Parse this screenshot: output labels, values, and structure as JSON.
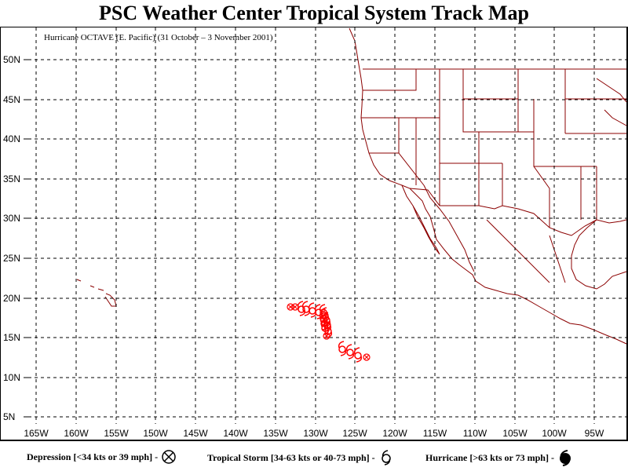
{
  "header": {
    "title": "PSC Weather Center Tropical System Track Map"
  },
  "map": {
    "subtitle": "Hurricane OCTAVE (E. Pacific)  (31 October – 3 November 2001)",
    "lat_labels": [
      "50N",
      "45N",
      "40N",
      "35N",
      "30N",
      "25N",
      "20N",
      "15N",
      "10N",
      "5N"
    ],
    "lon_labels": [
      "165W",
      "160W",
      "155W",
      "150W",
      "145W",
      "140W",
      "135W",
      "130W",
      "125W",
      "120W",
      "115W",
      "110W",
      "105W",
      "100W",
      "95W"
    ],
    "colors": {
      "track": "#ff0000",
      "coast": "#8b0000",
      "grid": "#000000"
    }
  },
  "legend": {
    "depression": "Depression [<34 kts or 39 mph] -",
    "storm": "Tropical Storm [34-63 kts or 40-73 mph] -",
    "hurricane": "Hurricane [>63 kts or 73 mph] -"
  }
}
